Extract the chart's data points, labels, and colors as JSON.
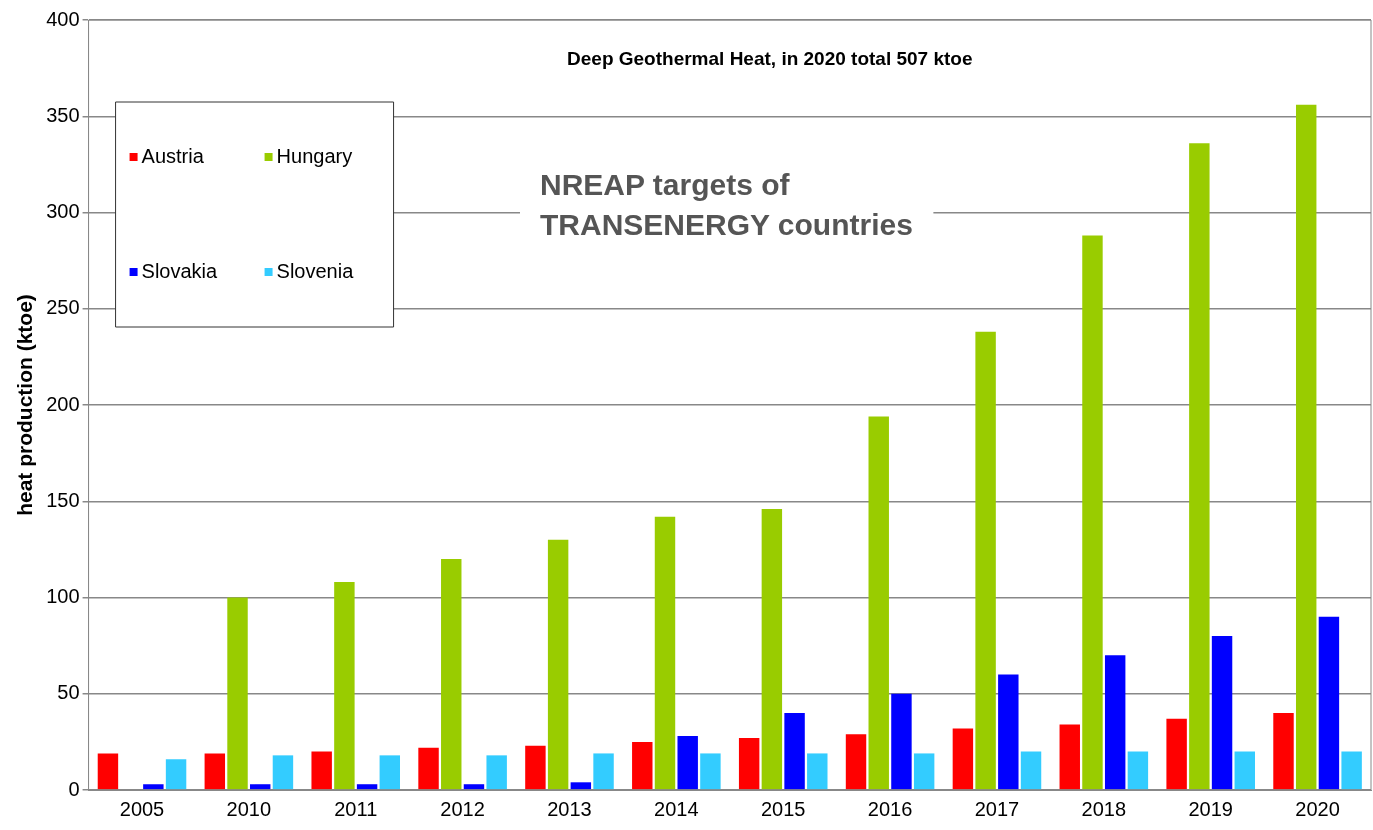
{
  "chart_data": {
    "type": "bar",
    "title": "Deep Geothermal Heat, in 2020 total 507 ktoe",
    "ylabel": "heat production (ktoe)",
    "annotations": [
      "NREAP targets of TRANSENERGY countries"
    ],
    "categories": [
      "2005",
      "2010",
      "2011",
      "2012",
      "2013",
      "2014",
      "2015",
      "2016",
      "2017",
      "2018",
      "2019",
      "2020"
    ],
    "series": [
      {
        "name": "Austria",
        "color": "#ff0000",
        "values": [
          19,
          19,
          20,
          22,
          23,
          25,
          27,
          29,
          32,
          34,
          37,
          40
        ]
      },
      {
        "name": "Hungary",
        "color": "#99cc00",
        "values": [
          null,
          100,
          108,
          120,
          130,
          142,
          146,
          194,
          238,
          288,
          336,
          356
        ]
      },
      {
        "name": "Slovakia",
        "color": "#0000ff",
        "values": [
          3,
          3,
          3,
          3,
          4,
          28,
          40,
          50,
          60,
          70,
          80,
          90
        ]
      },
      {
        "name": "Slovenia",
        "color": "#33ccff",
        "values": [
          16,
          18,
          18,
          18,
          19,
          19,
          19,
          19,
          20,
          20,
          20,
          20
        ]
      }
    ],
    "ylim": [
      0,
      400
    ],
    "yticks": [
      0,
      50,
      100,
      150,
      200,
      250,
      300,
      350,
      400
    ],
    "grid": "y",
    "legend": "top left"
  }
}
